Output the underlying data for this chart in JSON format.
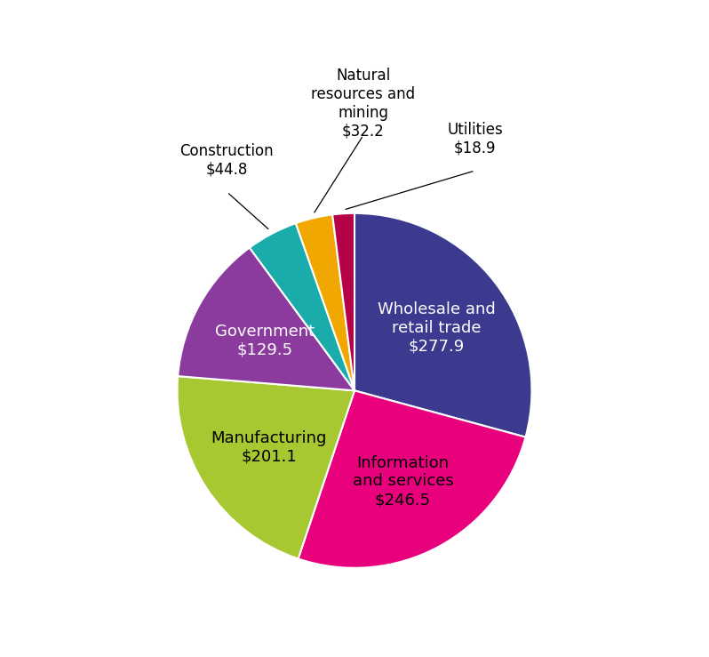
{
  "values": [
    277.9,
    246.5,
    201.1,
    129.5,
    44.8,
    32.2,
    18.9
  ],
  "colors": [
    "#3c3a8e",
    "#e8007c",
    "#a8c831",
    "#8b3a9e",
    "#1aacaa",
    "#f0a800",
    "#b5004a"
  ],
  "internal_labels": [
    "Wholesale and\nretail trade\n$277.9",
    "Information\nand services\n$246.5",
    "Manufacturing\n$201.1",
    "Government\n$129.5",
    "",
    "",
    ""
  ],
  "internal_colors": [
    "white",
    "black",
    "black",
    "white",
    "",
    "",
    ""
  ],
  "external_label_texts": [
    "Construction\n$44.8",
    "Natural\nresources and\nmining\n$32.2",
    "Utilities\n$18.9"
  ],
  "external_indices": [
    4,
    5,
    6
  ],
  "background_color": "#ffffff",
  "startangle": 90,
  "internal_r": 0.58,
  "internal_fontsize": 13,
  "external_fontsize": 12
}
